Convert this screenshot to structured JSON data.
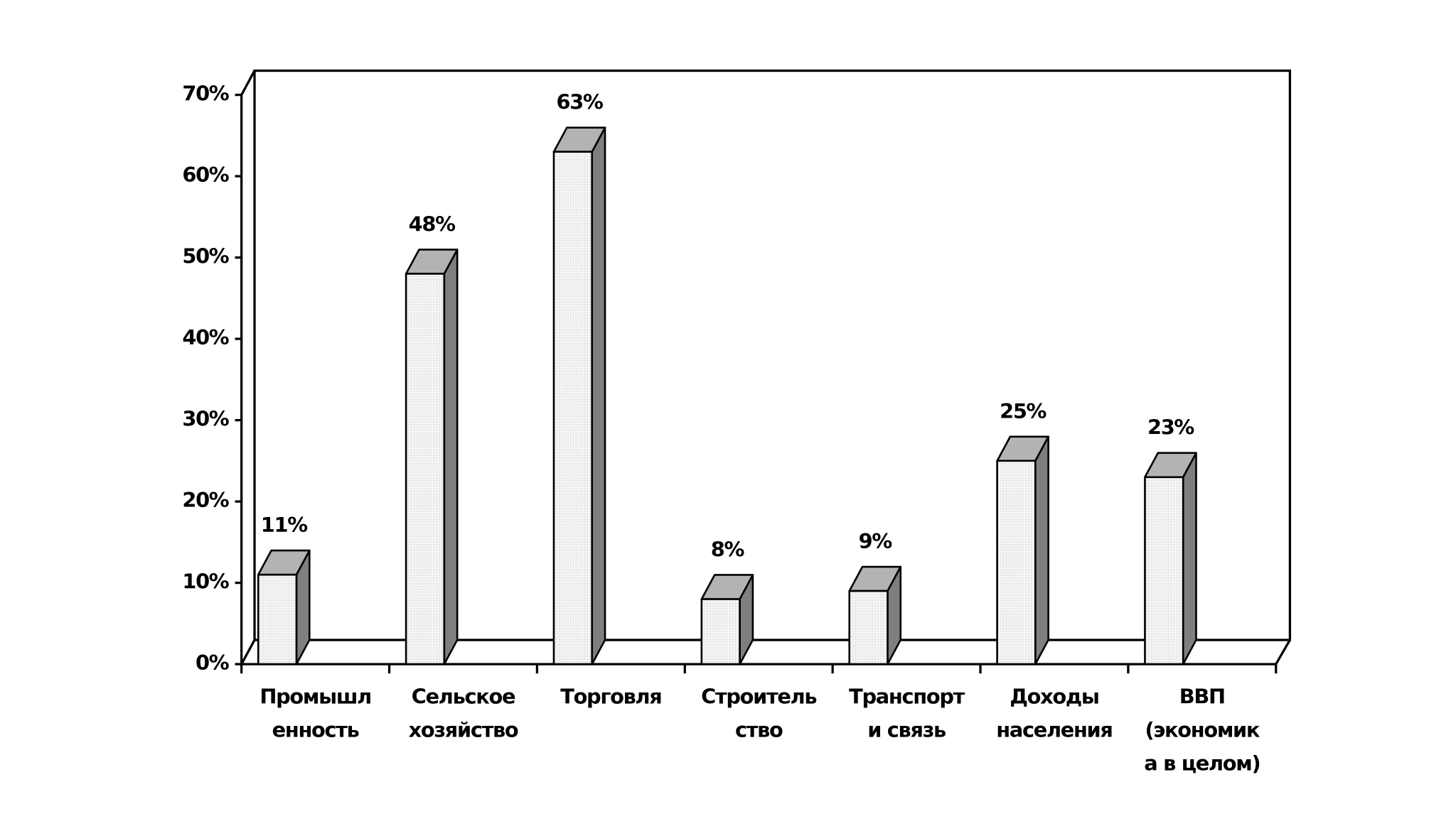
{
  "chart_data": {
    "type": "bar3d",
    "categories": [
      [
        "Промышл",
        "енность"
      ],
      [
        "Сельское",
        "хозяйство"
      ],
      [
        "Торговля"
      ],
      [
        "Строитель",
        "ство"
      ],
      [
        "Транспорт",
        "и связь"
      ],
      [
        "Доходы",
        "населения"
      ],
      [
        "ВВП",
        "(экономик",
        "а в целом)"
      ]
    ],
    "values": [
      11,
      48,
      63,
      8,
      9,
      25,
      23
    ],
    "value_labels": [
      "11%",
      "48%",
      "63%",
      "8%",
      "9%",
      "25%",
      "23%"
    ],
    "ylim": [
      0,
      70
    ],
    "yticks": [
      {
        "value": 0,
        "label": "0%"
      },
      {
        "value": 10,
        "label": "10%"
      },
      {
        "value": 20,
        "label": "20%"
      },
      {
        "value": 30,
        "label": "30%"
      },
      {
        "value": 40,
        "label": "40%"
      },
      {
        "value": 50,
        "label": "50%"
      },
      {
        "value": 60,
        "label": "60%"
      },
      {
        "value": 70,
        "label": "70%"
      }
    ],
    "colors": {
      "front": "#eeeeee",
      "top": "#b3b3b3",
      "side": "#7f7f7f"
    }
  }
}
